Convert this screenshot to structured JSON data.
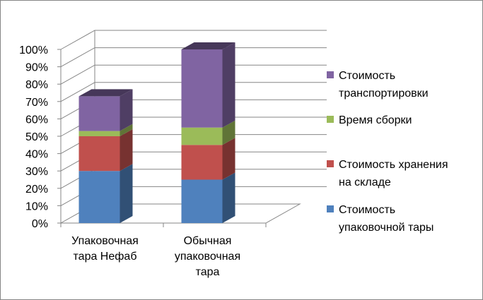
{
  "chart_data": {
    "type": "bar",
    "stacked": true,
    "three_d": true,
    "y_axis": {
      "ticks": [
        "0%",
        "10%",
        "20%",
        "30%",
        "40%",
        "50%",
        "60%",
        "70%",
        "80%",
        "90%",
        "100%"
      ],
      "ylim": [
        0,
        100
      ]
    },
    "grid": true,
    "legend_position": "right",
    "categories": [
      [
        "Упаковочная",
        "тара Нефаб"
      ],
      [
        "Обычная",
        "упаковочная",
        "тара"
      ]
    ],
    "series": [
      {
        "name": [
          "Стоимость",
          "упаковочной тары"
        ],
        "color": "#4F81BD",
        "values": [
          30,
          25
        ]
      },
      {
        "name": [
          "Стоимость хранения",
          "на складе"
        ],
        "color": "#C0504D",
        "values": [
          20,
          20
        ]
      },
      {
        "name": [
          "Время сборки"
        ],
        "color": "#9BBB59",
        "values": [
          3,
          10
        ]
      },
      {
        "name": [
          "Стоимость",
          "транспортировки"
        ],
        "color": "#8064A2",
        "values": [
          20,
          45
        ]
      }
    ]
  }
}
